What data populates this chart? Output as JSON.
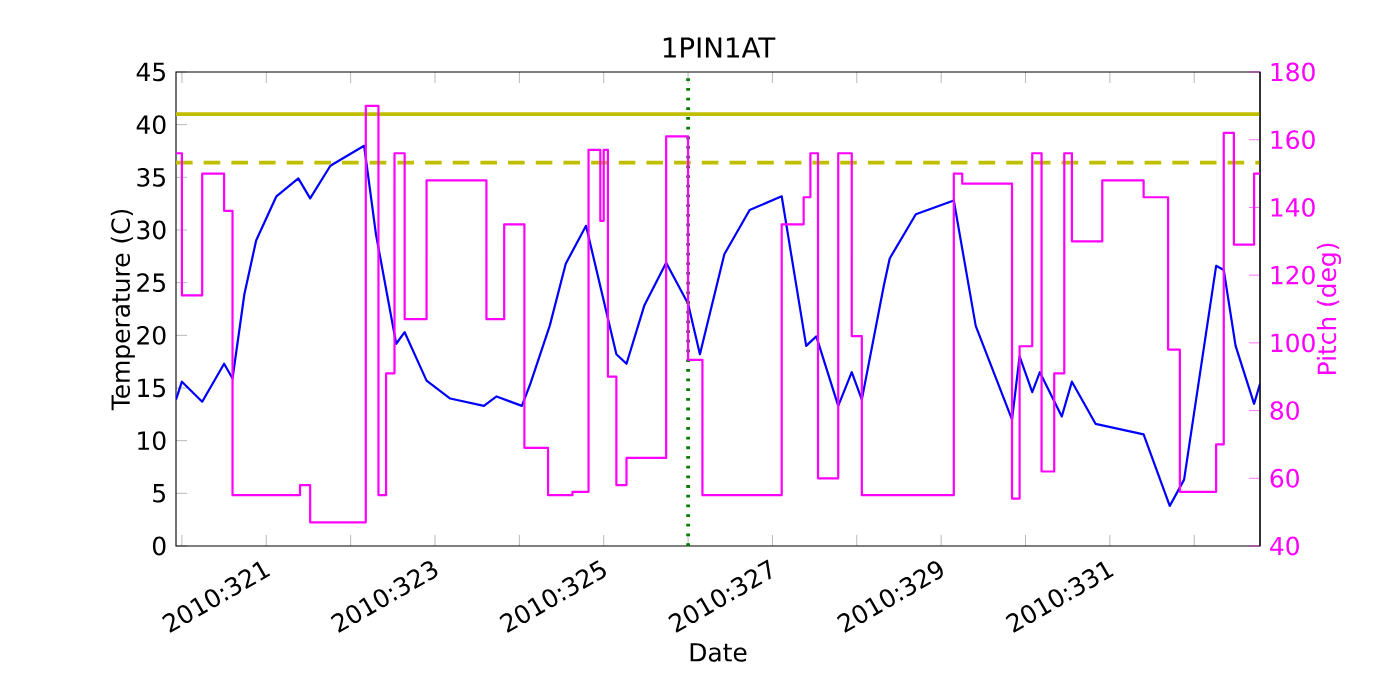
{
  "chart_data": {
    "type": "line",
    "title": "1PIN1AT",
    "xlabel": "Date",
    "ylabel": "Temperature (C)",
    "y2label": "Pitch (deg)",
    "xlim": [
      "2010-11-15T22:19",
      "2010-11-28T18:43"
    ],
    "xticks": [
      {
        "value": "2010-11-16",
        "label": null
      },
      {
        "value": "2010-11-17",
        "label": "2010:321"
      },
      {
        "value": "2010-11-18",
        "label": null
      },
      {
        "value": "2010-11-19",
        "label": "2010:323"
      },
      {
        "value": "2010-11-20",
        "label": null
      },
      {
        "value": "2010-11-21",
        "label": "2010:325"
      },
      {
        "value": "2010-11-22",
        "label": null
      },
      {
        "value": "2010-11-23",
        "label": "2010:327"
      },
      {
        "value": "2010-11-24",
        "label": null
      },
      {
        "value": "2010-11-25",
        "label": "2010:329"
      },
      {
        "value": "2010-11-26",
        "label": null
      },
      {
        "value": "2010-11-27",
        "label": "2010:331"
      },
      {
        "value": "2010-11-28",
        "label": null
      }
    ],
    "ylim": [
      0,
      45
    ],
    "yticks": [
      0,
      5,
      10,
      15,
      20,
      25,
      30,
      35,
      40,
      45
    ],
    "y2lim": [
      40,
      180
    ],
    "y2ticks": [
      40,
      60,
      80,
      100,
      120,
      140,
      160,
      180
    ],
    "series": [
      {
        "color": "#0000ff",
        "x": [
          "2010-11-15T22:19",
          "2010-11-16T00:00",
          "2010-11-16T05:46",
          "2010-11-16T12:00",
          "2010-11-16T14:24",
          "2010-11-16T17:46",
          "2010-11-16T21:07",
          "2010-11-17T02:53",
          "2010-11-17T09:07",
          "2010-11-17T12:29",
          "2010-11-17T18:14",
          "2010-11-18T03:50",
          "2010-11-18T07:12",
          "2010-11-18T12:58",
          "2010-11-18T15:22",
          "2010-11-18T21:36",
          "2010-11-19T04:19",
          "2010-11-19T13:55",
          "2010-11-19T17:31",
          "2010-11-20T00:43",
          "2010-11-20T03:07",
          "2010-11-20T08:38",
          "2010-11-20T13:12",
          "2010-11-20T18:58",
          "2010-11-21T03:36",
          "2010-11-21T06:29",
          "2010-11-21T11:31",
          "2010-11-21T17:46",
          "2010-11-22T00:00",
          "2010-11-22T03:22",
          "2010-11-22T10:19",
          "2010-11-22T17:31",
          "2010-11-23T02:38",
          "2010-11-23T09:36",
          "2010-11-23T12:29",
          "2010-11-23T18:43",
          "2010-11-23T22:34",
          "2010-11-24T01:26",
          "2010-11-24T07:41",
          "2010-11-24T09:22",
          "2010-11-24T16:48",
          "2010-11-25T03:36",
          "2010-11-25T09:50",
          "2010-11-25T20:10",
          "2010-11-25T22:19",
          "2010-11-26T01:55",
          "2010-11-26T04:05",
          "2010-11-26T10:19",
          "2010-11-26T13:12",
          "2010-11-26T19:55",
          "2010-11-27T09:36",
          "2010-11-27T17:02",
          "2010-11-27T21:07",
          "2010-11-28T06:14",
          "2010-11-28T08:24",
          "2010-11-28T11:46",
          "2010-11-28T17:02",
          "2010-11-28T18:43"
        ],
        "values": [
          13.9,
          15.6,
          13.7,
          17.3,
          15.9,
          23.9,
          29.0,
          33.2,
          34.9,
          33.0,
          36.1,
          38.0,
          29.6,
          19.2,
          20.3,
          15.7,
          14.0,
          13.3,
          14.2,
          13.3,
          15.4,
          20.9,
          26.8,
          30.4,
          18.2,
          17.3,
          22.8,
          26.9,
          23.0,
          18.2,
          27.7,
          31.9,
          33.2,
          19.0,
          19.9,
          13.3,
          16.5,
          13.9,
          24.7,
          27.3,
          31.5,
          32.8,
          20.9,
          12.0,
          18.0,
          14.6,
          16.5,
          12.3,
          15.6,
          11.6,
          10.6,
          3.8,
          6.3,
          26.6,
          26.2,
          19.0,
          13.5,
          15.4
        ]
      },
      {
        "type": "step",
        "axis": "y2",
        "color": "#ff00ff",
        "x": [
          "2010-11-15T22:19",
          "2010-11-16T00:00",
          "2010-11-16T05:46",
          "2010-11-16T12:00",
          "2010-11-16T14:24",
          "2010-11-17T09:36",
          "2010-11-17T12:29",
          "2010-11-18T04:19",
          "2010-11-18T07:55",
          "2010-11-18T10:05",
          "2010-11-18T12:29",
          "2010-11-18T15:22",
          "2010-11-18T21:36",
          "2010-11-19T14:38",
          "2010-11-19T19:41",
          "2010-11-20T01:26",
          "2010-11-20T08:10",
          "2010-11-20T15:07",
          "2010-11-20T19:41",
          "2010-11-20T23:02",
          "2010-11-21T00:00",
          "2010-11-21T01:12",
          "2010-11-21T03:36",
          "2010-11-21T06:29",
          "2010-11-21T17:46",
          "2010-11-22T00:00",
          "2010-11-22T04:05",
          "2010-11-23T02:38",
          "2010-11-23T08:53",
          "2010-11-23T10:48",
          "2010-11-23T12:58",
          "2010-11-23T18:43",
          "2010-11-23T22:34",
          "2010-11-24T01:26",
          "2010-11-25T03:36",
          "2010-11-25T06:00",
          "2010-11-25T20:10",
          "2010-11-25T22:19",
          "2010-11-26T01:55",
          "2010-11-26T04:34",
          "2010-11-26T08:10",
          "2010-11-26T11:02",
          "2010-11-26T13:12",
          "2010-11-26T21:50",
          "2010-11-27T09:36",
          "2010-11-27T16:34",
          "2010-11-27T19:55",
          "2010-11-28T06:14",
          "2010-11-28T08:24",
          "2010-11-28T11:17",
          "2010-11-28T17:02",
          "2010-11-28T18:43"
        ],
        "values": [
          156,
          114,
          150,
          139,
          55,
          58,
          47,
          170,
          55,
          91,
          156,
          107,
          148,
          107,
          135,
          69,
          55,
          56,
          157,
          136,
          157,
          90,
          58,
          66,
          161,
          95,
          55,
          135,
          143,
          156,
          60,
          156,
          102,
          55,
          150,
          147,
          54,
          99,
          156,
          62,
          91,
          156,
          130,
          148,
          143,
          98,
          56,
          70,
          162,
          129,
          150,
          150
        ]
      }
    ],
    "ref_lines": [
      {
        "axis": "y",
        "value": 41,
        "color": "#bfbf00",
        "line_style": "solid"
      },
      {
        "axis": "y",
        "value": 36.4,
        "color": "#bfbf00",
        "line_style": "dashed"
      },
      {
        "axis": "x",
        "value": "2010-11-22T00:00",
        "color": "#008000",
        "line_style": "dotted"
      }
    ]
  }
}
